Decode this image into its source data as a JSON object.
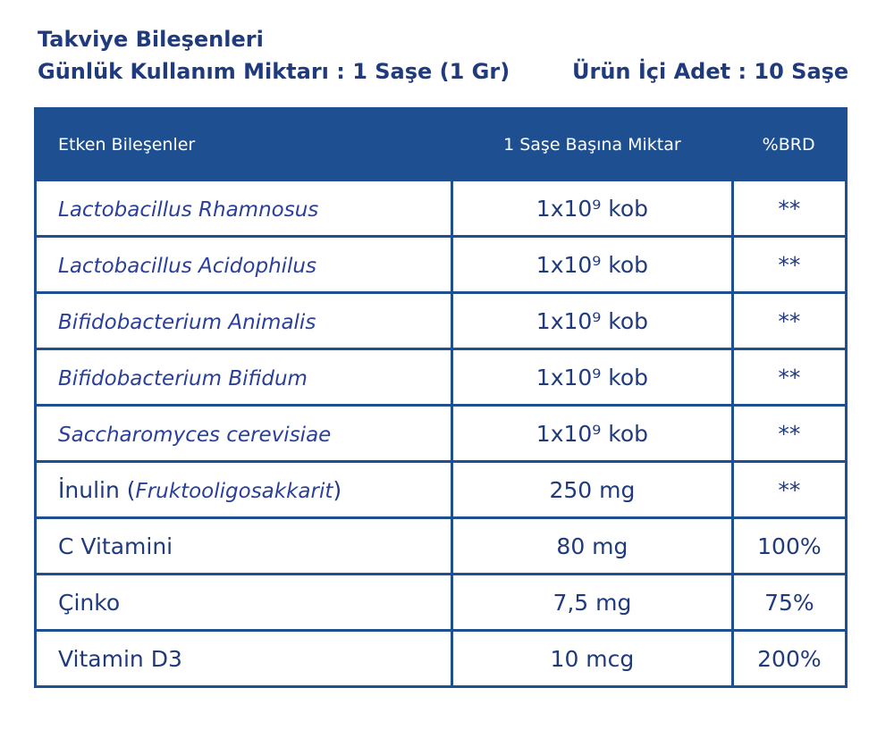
{
  "header": {
    "title": "Takviye Bileşenleri",
    "daily_amount": "Günlük Kullanım Miktarı : 1 Saşe (1 Gr)",
    "package_count": "Ürün İçi Adet : 10 Saşe"
  },
  "table": {
    "columns": [
      "Etken Bileşenler",
      "1 Saşe Başına Miktar",
      "%BRD"
    ],
    "rows": [
      {
        "name": [
          "Lactobacillus Rhamnosus"
        ],
        "italic": true,
        "amount": "1x10⁹ kob",
        "brd": "**"
      },
      {
        "name": [
          "Lactobacillus Acidophilus"
        ],
        "italic": true,
        "amount": "1x10⁹ kob",
        "brd": "**"
      },
      {
        "name": [
          "Bifidobacterium Animalis"
        ],
        "italic": true,
        "amount": "1x10⁹ kob",
        "brd": "**"
      },
      {
        "name": [
          "Bifidobacterium Bifidum"
        ],
        "italic": true,
        "amount": "1x10⁹ kob",
        "brd": "**"
      },
      {
        "name": [
          "Saccharomyces cerevisiae"
        ],
        "italic": true,
        "amount": "1x10⁹ kob",
        "brd": "**"
      },
      {
        "name": [
          "İnulin (",
          "Fruktooligosakkarit",
          ")"
        ],
        "italic": false,
        "amount": "250 mg",
        "brd": "**"
      },
      {
        "name": [
          "C Vitamini"
        ],
        "italic": false,
        "amount": "80 mg",
        "brd": "100%"
      },
      {
        "name": [
          "Çinko"
        ],
        "italic": false,
        "amount": "7,5 mg",
        "brd": "75%"
      },
      {
        "name": [
          "Vitamin D3"
        ],
        "italic": false,
        "amount": "10 mcg",
        "brd": "200%"
      }
    ]
  }
}
